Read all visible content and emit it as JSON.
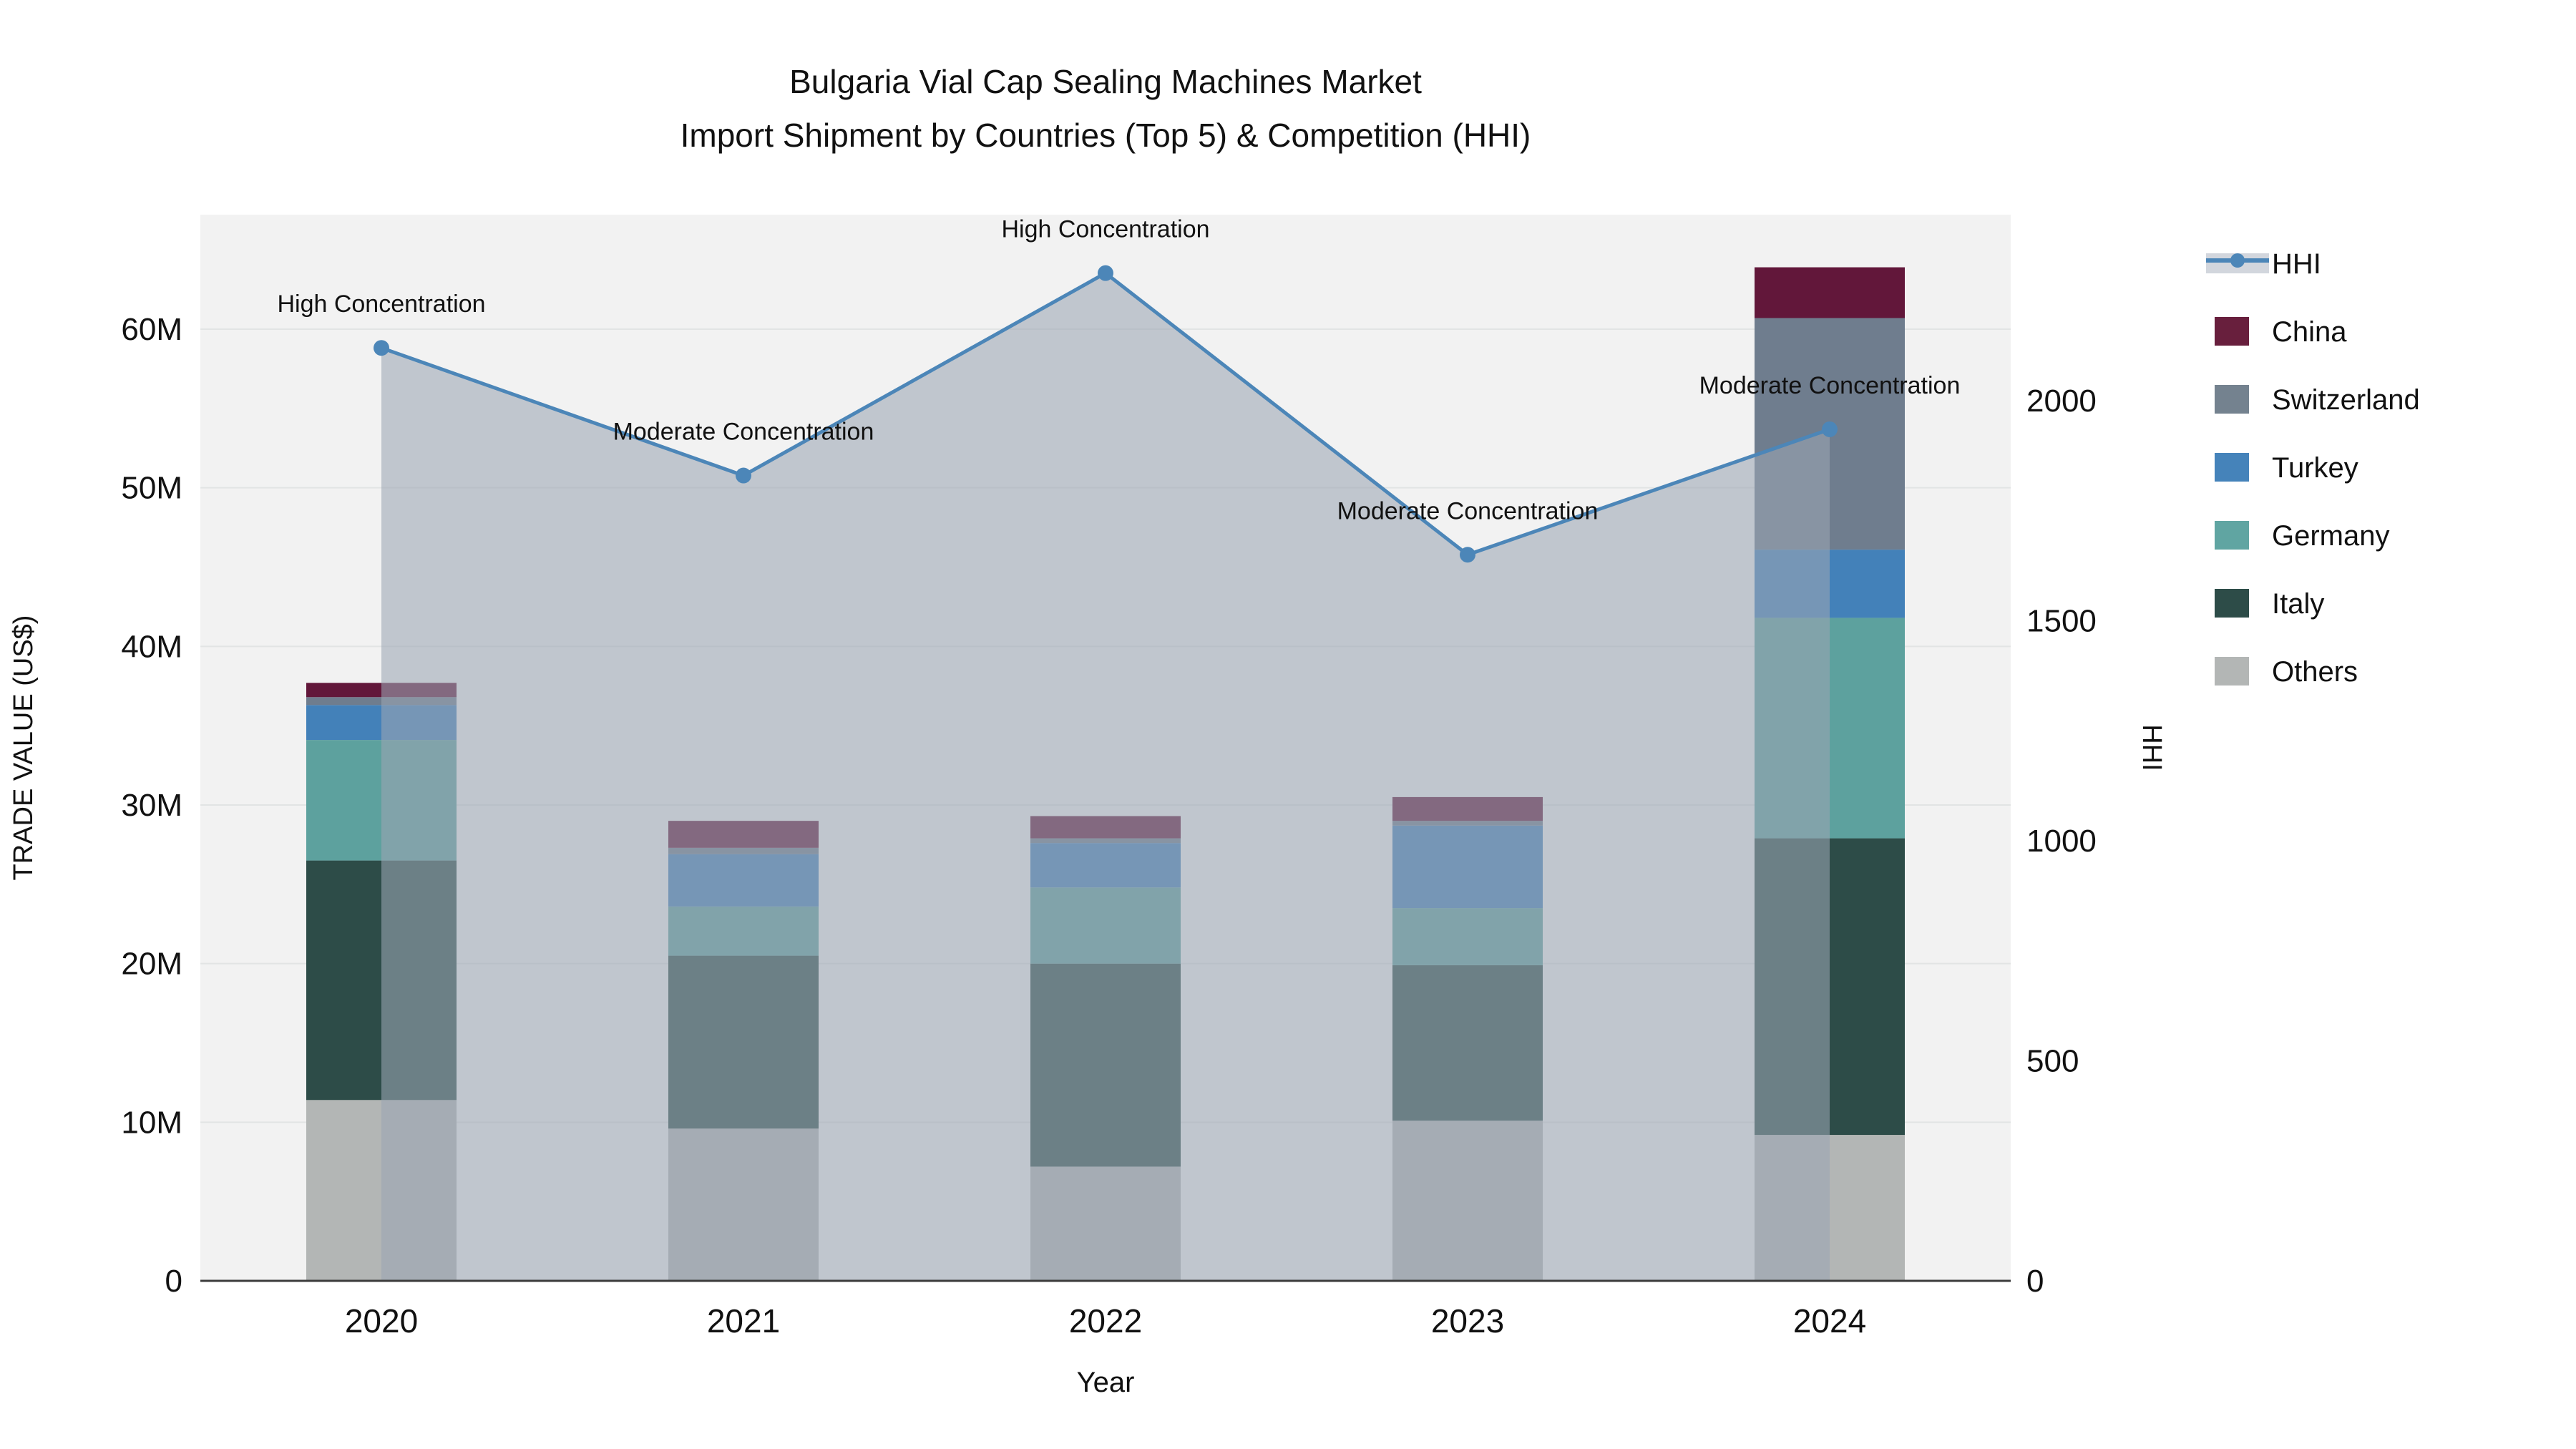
{
  "title": {
    "line1": "Bulgaria Vial Cap Sealing Machines Market",
    "line2": "Import Shipment by Countries (Top 5) & Competition (HHI)"
  },
  "legend": {
    "items": [
      {
        "label": "HHI",
        "type": "line",
        "color": "#4c86b8"
      },
      {
        "label": "China",
        "type": "box",
        "color": "#681f3d"
      },
      {
        "label": "Switzerland",
        "type": "box",
        "color": "#74828f"
      },
      {
        "label": "Turkey",
        "type": "box",
        "color": "#4583ba"
      },
      {
        "label": "Germany",
        "type": "box",
        "color": "#60a5a2"
      },
      {
        "label": "Italy",
        "type": "box",
        "color": "#2d4c48"
      },
      {
        "label": "Others",
        "type": "box",
        "color": "#b3b6b5"
      }
    ]
  },
  "chart_data": {
    "type": "composite",
    "subtypes": [
      "stacked-bar",
      "line"
    ],
    "title": "Bulgaria Vial Cap Sealing Machines Market — Import Shipment by Countries (Top 5) & Competition (HHI)",
    "categories": [
      "2020",
      "2021",
      "2022",
      "2023",
      "2024"
    ],
    "bar_value_unit": "million US$",
    "stack_order_bottom_to_top": [
      "Others",
      "Italy",
      "Germany",
      "Turkey",
      "Switzerland",
      "China"
    ],
    "series": [
      {
        "name": "Others",
        "color": "#b3b6b5",
        "shaded_color": "#9ba1a6",
        "values": [
          11.4,
          9.6,
          7.2,
          10.1,
          9.2
        ]
      },
      {
        "name": "Italy",
        "color": "#2d4c48",
        "shaded_color": "#46605f",
        "values": [
          15.1,
          10.9,
          12.8,
          9.8,
          18.7
        ]
      },
      {
        "name": "Germany",
        "color": "#5da19e",
        "shaded_color": "#699a99",
        "values": [
          7.6,
          3.1,
          4.8,
          3.6,
          13.9
        ]
      },
      {
        "name": "Turkey",
        "color": "#4381b9",
        "shaded_color": "#5584ad",
        "values": [
          2.2,
          3.3,
          2.8,
          5.2,
          4.3
        ]
      },
      {
        "name": "Switzerland",
        "color": "#6f7d8e",
        "shaded_color": "#75808e",
        "values": [
          0.5,
          0.4,
          0.3,
          0.3,
          14.6
        ]
      },
      {
        "name": "China",
        "color": "#62173a",
        "shaded_color": "#693a52",
        "values": [
          0.9,
          1.7,
          1.4,
          1.5,
          3.2
        ]
      }
    ],
    "line_series": {
      "name": "HHI",
      "axis": "right",
      "color": "#4c86b8",
      "area_fill": "rgba(155,165,180,0.58)",
      "values": [
        2120,
        1830,
        2290,
        1650,
        1935
      ]
    },
    "annotations": [
      {
        "year": "2020",
        "text": "High Concentration"
      },
      {
        "year": "2021",
        "text": "Moderate Concentration"
      },
      {
        "year": "2022",
        "text": "High Concentration"
      },
      {
        "year": "2023",
        "text": "Moderate Concentration"
      },
      {
        "year": "2024",
        "text": "Moderate Concentration"
      }
    ],
    "y_left": {
      "label": "TRADE VALUE (US$)",
      "tick_labels": [
        "0",
        "10M",
        "20M",
        "30M",
        "40M",
        "50M",
        "60M"
      ],
      "tick_values": [
        0,
        10,
        20,
        30,
        40,
        50,
        60
      ],
      "range": [
        0,
        67.2
      ]
    },
    "y_right": {
      "label": "HHI",
      "tick_labels": [
        "0",
        "500",
        "1000",
        "1500",
        "2000"
      ],
      "tick_values": [
        0,
        500,
        1000,
        1500,
        2000
      ],
      "range": [
        0,
        2423
      ]
    },
    "x": {
      "label": "Year"
    },
    "grid": true,
    "legend_position": "right",
    "plot_background": "#f2f2f2",
    "gridline_color": "#e2e4e4",
    "baseline_color": "#3c3c3c"
  }
}
